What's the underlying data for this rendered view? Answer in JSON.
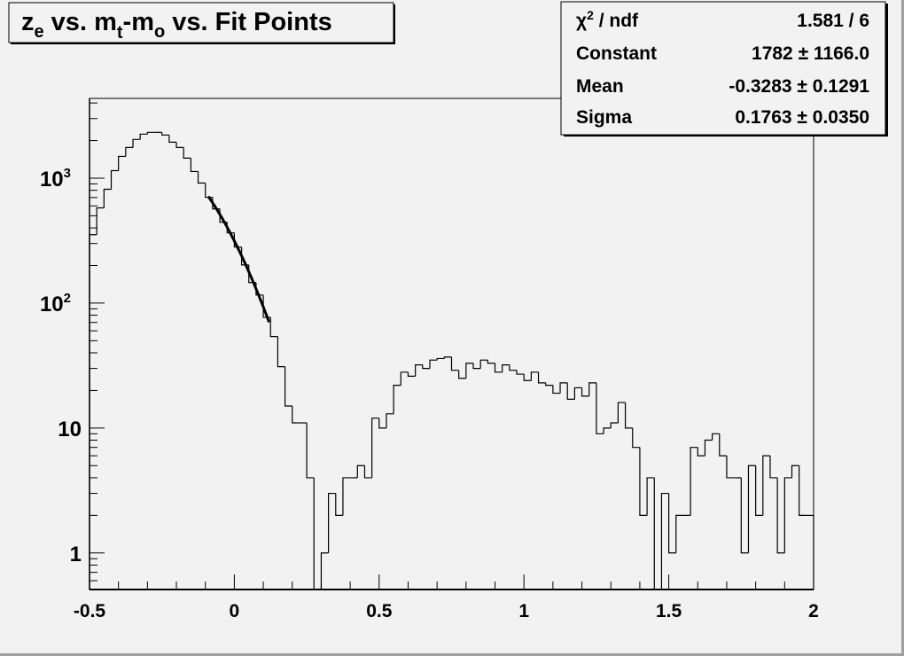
{
  "chart_data": {
    "type": "histogram",
    "title": "z_e vs. m_t-m_o vs. Fit Points",
    "title_parts": {
      "z": "z",
      "e": "e",
      "vs1": " vs. ",
      "m1": "m",
      "t": "t",
      "dash": "-m",
      "o": "o",
      "rest": " vs. Fit Points"
    },
    "xlim": [
      -0.5,
      2.0
    ],
    "ylim": [
      0.51,
      4350
    ],
    "yscale": "log",
    "grid": false,
    "bin_width": 0.025,
    "x_ticks": [
      "-0.5",
      "0",
      "0.5",
      "1",
      "1.5",
      "2"
    ],
    "y_ticks": [
      {
        "base": "1",
        "exp": ""
      },
      {
        "base": "10",
        "exp": ""
      },
      {
        "base": "10",
        "exp": "2"
      },
      {
        "base": "10",
        "exp": "3"
      }
    ],
    "values": [
      353,
      578,
      815,
      1149,
      1493,
      1760,
      2041,
      2251,
      2326,
      2326,
      2215,
      1942,
      1760,
      1446,
      1131,
      914,
      703,
      568,
      444,
      365,
      281,
      202,
      146,
      116,
      77,
      54,
      31,
      15,
      11,
      11,
      4,
      0,
      1,
      3,
      2,
      4,
      4,
      5,
      4,
      12,
      10,
      13,
      22,
      28,
      26,
      32,
      30,
      35,
      36,
      37,
      29,
      25,
      33,
      30,
      35,
      33,
      28,
      32,
      29,
      27,
      24,
      28,
      23,
      22,
      19,
      23,
      17,
      21,
      18,
      23,
      9,
      10,
      11,
      16,
      10,
      7,
      2,
      4,
      0,
      3,
      1,
      2,
      2,
      7,
      6,
      8,
      9,
      6,
      4,
      4,
      1,
      5,
      2,
      6,
      4,
      1,
      4,
      5,
      2,
      2
    ],
    "fit": {
      "function": "gaus",
      "constant": 1782,
      "mean": -0.3283,
      "sigma": 0.1763,
      "range": [
        -0.09,
        0.12
      ]
    },
    "stats": [
      {
        "label": "χ² / ndf",
        "label_main": "χ",
        "label_sup": "2",
        "label_rest": " / ndf",
        "value": "1.581 / 6"
      },
      {
        "label": "Constant",
        "value": "1782 ± 1166.0"
      },
      {
        "label": "Mean",
        "value": "-0.3283 ± 0.1291"
      },
      {
        "label": "Sigma",
        "value": "0.1763 ± 0.0350"
      }
    ],
    "stats_placement": "top-right",
    "colors": {
      "background": "#f2f2f2",
      "line": "#000000"
    }
  }
}
